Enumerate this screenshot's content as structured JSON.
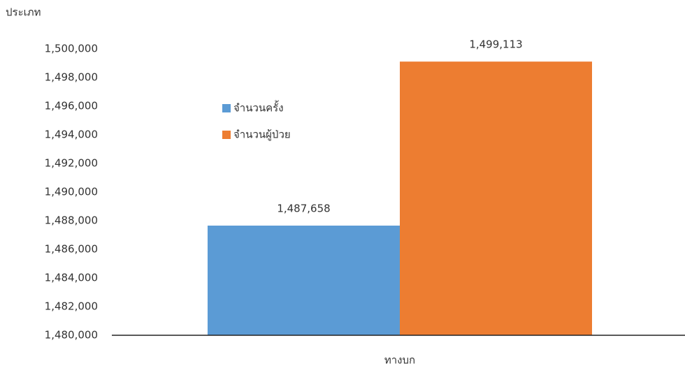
{
  "chart_data": {
    "type": "bar",
    "y_label": "ประเภท",
    "categories": [
      "ทางบก"
    ],
    "series": [
      {
        "name": "จำนวนครั้ง",
        "color": "#5b9bd5",
        "values": [
          1487658
        ],
        "value_labels": [
          "1,487,658"
        ]
      },
      {
        "name": "จำนวนผู้ป่วย",
        "color": "#ed7d31",
        "values": [
          1499113
        ],
        "value_labels": [
          "1,499,113"
        ]
      }
    ],
    "ylim": [
      1480000,
      1500000
    ],
    "yticks": [
      {
        "value": 1480000,
        "label": "1,480,000"
      },
      {
        "value": 1482000,
        "label": "1,482,000"
      },
      {
        "value": 1484000,
        "label": "1,484,000"
      },
      {
        "value": 1486000,
        "label": "1,486,000"
      },
      {
        "value": 1488000,
        "label": "1,488,000"
      },
      {
        "value": 1490000,
        "label": "1,490,000"
      },
      {
        "value": 1492000,
        "label": "1,492,000"
      },
      {
        "value": 1494000,
        "label": "1,494,000"
      },
      {
        "value": 1496000,
        "label": "1,496,000"
      },
      {
        "value": 1498000,
        "label": "1,498,000"
      },
      {
        "value": 1500000,
        "label": "1,500,000"
      }
    ],
    "grid": false,
    "legend": "upper left"
  }
}
